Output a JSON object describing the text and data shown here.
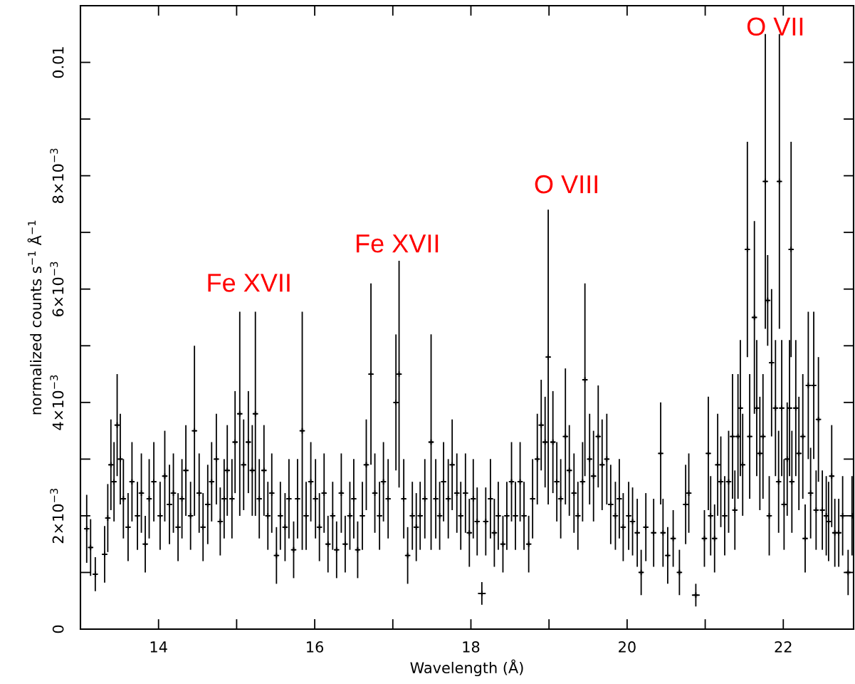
{
  "chart_data": {
    "type": "scatter",
    "xlabel": "Wavelength (Å)",
    "ylabel": "normalized counts s$^{−1}$ Å$^{−1}$",
    "xlim": [
      13.0,
      22.9
    ],
    "xticks": [
      14,
      {
        "value": 15,
        "label": null
      },
      16,
      {
        "value": 17,
        "label": null
      },
      18,
      {
        "value": 19,
        "label": null
      },
      20,
      {
        "value": 21,
        "label": null
      },
      22
    ],
    "ylim": [
      0,
      0.011
    ],
    "yticks": [
      {
        "value": 0,
        "label": "0"
      },
      {
        "value": 0.001,
        "label": null
      },
      {
        "value": 0.002,
        "label": "2×10$^{−3}$"
      },
      {
        "value": 0.003,
        "label": null
      },
      {
        "value": 0.004,
        "label": "4×10$^{−3}$"
      },
      {
        "value": 0.005,
        "label": null
      },
      {
        "value": 0.006,
        "label": "6×10$^{−3}$"
      },
      {
        "value": 0.007,
        "label": null
      },
      {
        "value": 0.008,
        "label": "8×10$^{−3}$"
      },
      {
        "value": 0.009,
        "label": null
      },
      {
        "value": 0.01,
        "label": "0.01"
      }
    ],
    "marker": "cross",
    "grid": false,
    "legend": false,
    "annotations": [
      "Fe XVII",
      "Fe XVII",
      "O VIII",
      "O VII"
    ],
    "series": [
      {
        "color": "#000000",
        "x": [
          13.08,
          13.13,
          13.19,
          13.31,
          13.35,
          13.39,
          13.43,
          13.47,
          13.51,
          13.55,
          13.61,
          13.66,
          13.73,
          13.78,
          13.83,
          13.88,
          13.94,
          14.02,
          14.08,
          14.14,
          14.19,
          14.25,
          14.3,
          14.35,
          14.41,
          14.46,
          14.52,
          14.57,
          14.63,
          14.68,
          14.74,
          14.79,
          14.84,
          14.88,
          14.94,
          14.98,
          15.04,
          15.09,
          15.15,
          15.2,
          15.24,
          15.29,
          15.35,
          15.4,
          15.45,
          15.51,
          15.56,
          15.62,
          15.67,
          15.73,
          15.78,
          15.84,
          15.89,
          15.95,
          16.01,
          16.06,
          16.12,
          16.17,
          16.23,
          16.28,
          16.34,
          16.39,
          16.45,
          16.5,
          16.55,
          16.61,
          16.66,
          16.72,
          16.77,
          16.83,
          16.88,
          16.94,
          17.04,
          17.08,
          17.14,
          17.19,
          17.25,
          17.3,
          17.35,
          17.41,
          17.49,
          17.55,
          17.6,
          17.65,
          17.71,
          17.76,
          17.82,
          17.87,
          17.93,
          17.98,
          18.03,
          18.08,
          18.14,
          18.19,
          18.25,
          18.3,
          18.35,
          18.41,
          18.46,
          18.52,
          18.57,
          18.63,
          18.68,
          18.74,
          18.79,
          18.85,
          18.9,
          18.95,
          18.99,
          19.05,
          19.1,
          19.15,
          19.21,
          19.26,
          19.32,
          19.37,
          19.43,
          19.46,
          19.52,
          19.57,
          19.63,
          19.68,
          19.74,
          19.79,
          19.85,
          19.9,
          19.95,
          20.02,
          20.07,
          20.13,
          20.18,
          20.24,
          20.34,
          20.43,
          20.46,
          20.52,
          20.59,
          20.67,
          20.75,
          20.79,
          20.88,
          20.99,
          21.04,
          21.07,
          21.12,
          21.16,
          21.2,
          21.25,
          21.3,
          21.35,
          21.38,
          21.42,
          21.45,
          21.48,
          21.54,
          21.57,
          21.63,
          21.66,
          21.7,
          21.74,
          21.77,
          21.8,
          21.82,
          21.85,
          21.9,
          21.94,
          21.95,
          21.98,
          22.01,
          22.05,
          22.08,
          22.1,
          22.11,
          22.16,
          22.2,
          22.25,
          22.28,
          22.32,
          22.35,
          22.39,
          22.42,
          22.45,
          22.5,
          22.55,
          22.58,
          22.62,
          22.66,
          22.71,
          22.76,
          22.83,
          22.88
        ],
        "values": [
          0.00177,
          0.00144,
          0.00097,
          0.00132,
          0.00196,
          0.0029,
          0.0026,
          0.0036,
          0.003,
          0.0023,
          0.0018,
          0.0026,
          0.002,
          0.0024,
          0.0015,
          0.0023,
          0.0026,
          0.002,
          0.0027,
          0.0022,
          0.0024,
          0.0018,
          0.0023,
          0.0028,
          0.002,
          0.0035,
          0.0024,
          0.0018,
          0.0022,
          0.0026,
          0.003,
          0.0019,
          0.0023,
          0.0028,
          0.0023,
          0.0033,
          0.0038,
          0.0029,
          0.0033,
          0.0028,
          0.0038,
          0.0023,
          0.0028,
          0.002,
          0.0024,
          0.0013,
          0.002,
          0.0018,
          0.0023,
          0.0014,
          0.0023,
          0.0035,
          0.002,
          0.0026,
          0.0023,
          0.0018,
          0.0024,
          0.0015,
          0.002,
          0.0014,
          0.0024,
          0.0015,
          0.002,
          0.0023,
          0.0014,
          0.002,
          0.0029,
          0.0045,
          0.0024,
          0.002,
          0.0026,
          0.0023,
          0.004,
          0.0045,
          0.0023,
          0.0013,
          0.002,
          0.0018,
          0.002,
          0.0023,
          0.0033,
          0.0023,
          0.002,
          0.0026,
          0.0023,
          0.0029,
          0.0024,
          0.002,
          0.0024,
          0.0017,
          0.0023,
          0.0019,
          0.00063,
          0.0019,
          0.0023,
          0.0017,
          0.002,
          0.0015,
          0.002,
          0.0026,
          0.002,
          0.0026,
          0.002,
          0.0015,
          0.0023,
          0.003,
          0.0036,
          0.0033,
          0.0048,
          0.0033,
          0.0026,
          0.0023,
          0.0034,
          0.0028,
          0.0024,
          0.002,
          0.0026,
          0.0044,
          0.003,
          0.0027,
          0.0034,
          0.0029,
          0.003,
          0.0022,
          0.002,
          0.0023,
          0.0018,
          0.002,
          0.0019,
          0.0017,
          0.001,
          0.0018,
          0.0017,
          0.0031,
          0.0017,
          0.0013,
          0.0016,
          0.001,
          0.0022,
          0.0024,
          0.0006,
          0.0016,
          0.0031,
          0.002,
          0.0016,
          0.0029,
          0.0026,
          0.002,
          0.0026,
          0.0034,
          0.0021,
          0.0034,
          0.0039,
          0.0029,
          0.0067,
          0.0034,
          0.0055,
          0.0039,
          0.0031,
          0.0034,
          0.0079,
          0.0058,
          0.002,
          0.0047,
          0.0039,
          0.0026,
          0.0079,
          0.0039,
          0.0022,
          0.003,
          0.0039,
          0.0067,
          0.0026,
          0.0039,
          0.0031,
          0.0034,
          0.0016,
          0.0043,
          0.0024,
          0.0043,
          0.0021,
          0.0037,
          0.0021,
          0.002,
          0.0019,
          0.0027,
          0.0017,
          0.0017,
          0.002,
          0.001,
          0.002
        ],
        "errors": [
          0.0006,
          0.0005,
          0.0003,
          0.0005,
          0.0006,
          0.0008,
          0.0007,
          0.0009,
          0.0008,
          0.0007,
          0.0006,
          0.0007,
          0.0006,
          0.0007,
          0.0005,
          0.0007,
          0.0007,
          0.0006,
          0.0008,
          0.0007,
          0.0007,
          0.0006,
          0.0007,
          0.0008,
          0.0006,
          0.0015,
          0.0007,
          0.0006,
          0.0007,
          0.0007,
          0.0008,
          0.0006,
          0.0007,
          0.0008,
          0.0007,
          0.0009,
          0.0018,
          0.0008,
          0.0009,
          0.0008,
          0.0018,
          0.0007,
          0.0008,
          0.0006,
          0.0007,
          0.0005,
          0.0006,
          0.0006,
          0.0007,
          0.0005,
          0.0007,
          0.0021,
          0.0006,
          0.0007,
          0.0007,
          0.0006,
          0.0007,
          0.0005,
          0.0006,
          0.0005,
          0.0007,
          0.0005,
          0.0006,
          0.0007,
          0.0005,
          0.0006,
          0.0008,
          0.0016,
          0.0007,
          0.0006,
          0.0007,
          0.0007,
          0.0012,
          0.002,
          0.0007,
          0.0005,
          0.0006,
          0.0006,
          0.0006,
          0.0007,
          0.0019,
          0.0007,
          0.0006,
          0.0007,
          0.0007,
          0.0008,
          0.0007,
          0.0006,
          0.0007,
          0.0006,
          0.0007,
          0.0006,
          0.0002,
          0.0006,
          0.0007,
          0.0006,
          0.0006,
          0.0005,
          0.0006,
          0.0007,
          0.0006,
          0.0007,
          0.0006,
          0.0005,
          0.0007,
          0.0008,
          0.0008,
          0.0008,
          0.0026,
          0.0009,
          0.0007,
          0.0007,
          0.0012,
          0.0008,
          0.0007,
          0.0006,
          0.0007,
          0.0017,
          0.0008,
          0.0008,
          0.0009,
          0.0008,
          0.0008,
          0.0007,
          0.0006,
          0.0007,
          0.0006,
          0.0006,
          0.0006,
          0.0006,
          0.0004,
          0.0006,
          0.0006,
          0.0009,
          0.0006,
          0.0005,
          0.0005,
          0.0004,
          0.0007,
          0.0007,
          0.0002,
          0.0005,
          0.001,
          0.0007,
          0.0006,
          0.0009,
          0.0008,
          0.0007,
          0.0009,
          0.0011,
          0.0007,
          0.0011,
          0.0012,
          0.0009,
          0.0019,
          0.0011,
          0.0017,
          0.0012,
          0.001,
          0.0011,
          0.0026,
          0.0008,
          0.0007,
          0.0013,
          0.0012,
          0.0009,
          0.0026,
          0.0012,
          0.0008,
          0.001,
          0.0012,
          0.0019,
          0.0009,
          0.0012,
          0.001,
          0.0011,
          0.0006,
          0.0013,
          0.0008,
          0.0013,
          0.0007,
          0.0011,
          0.0007,
          0.0007,
          0.0007,
          0.0009,
          0.0006,
          0.0006,
          0.0007,
          0.0004,
          0.0007
        ],
        "xerrors": [
          0.025,
          0.025,
          0.025,
          0.025,
          0.025,
          0.025,
          0.025,
          0.025,
          0.025,
          0.025,
          0.025,
          0.025,
          0.025,
          0.025,
          0.025,
          0.025,
          0.025,
          0.025,
          0.025,
          0.025,
          0.025,
          0.025,
          0.025,
          0.025,
          0.025,
          0.025,
          0.025,
          0.025,
          0.025,
          0.025,
          0.025,
          0.025,
          0.025,
          0.025,
          0.025,
          0.025,
          0.025,
          0.025,
          0.025,
          0.025,
          0.025,
          0.025,
          0.025,
          0.025,
          0.025,
          0.025,
          0.025,
          0.025,
          0.025,
          0.025,
          0.025,
          0.025,
          0.025,
          0.025,
          0.025,
          0.025,
          0.025,
          0.025,
          0.025,
          0.025,
          0.025,
          0.025,
          0.025,
          0.025,
          0.025,
          0.025,
          0.025,
          0.025,
          0.025,
          0.025,
          0.025,
          0.025,
          0.025,
          0.025,
          0.025,
          0.025,
          0.025,
          0.025,
          0.025,
          0.025,
          0.025,
          0.025,
          0.025,
          0.025,
          0.025,
          0.025,
          0.025,
          0.025,
          0.025,
          0.025,
          0.025,
          0.025,
          0.05,
          0.025,
          0.025,
          0.025,
          0.025,
          0.025,
          0.025,
          0.025,
          0.025,
          0.025,
          0.025,
          0.025,
          0.025,
          0.025,
          0.025,
          0.025,
          0.025,
          0.025,
          0.025,
          0.025,
          0.025,
          0.025,
          0.025,
          0.025,
          0.025,
          0.025,
          0.025,
          0.025,
          0.025,
          0.025,
          0.025,
          0.025,
          0.025,
          0.025,
          0.025,
          0.025,
          0.025,
          0.025,
          0.025,
          0.025,
          0.025,
          0.025,
          0.025,
          0.025,
          0.025,
          0.025,
          0.025,
          0.025,
          0.05,
          0.025,
          0.025,
          0.025,
          0.025,
          0.025,
          0.025,
          0.025,
          0.025,
          0.025,
          0.025,
          0.025,
          0.025,
          0.025,
          0.025,
          0.025,
          0.025,
          0.025,
          0.025,
          0.025,
          0.025,
          0.025,
          0.025,
          0.025,
          0.025,
          0.025,
          0.025,
          0.025,
          0.025,
          0.025,
          0.025,
          0.025,
          0.025,
          0.025,
          0.025,
          0.025,
          0.025,
          0.025,
          0.025,
          0.025,
          0.025,
          0.025,
          0.025,
          0.025,
          0.025,
          0.025,
          0.025,
          0.025,
          0.025,
          0.025,
          0.025
        ]
      }
    ]
  }
}
